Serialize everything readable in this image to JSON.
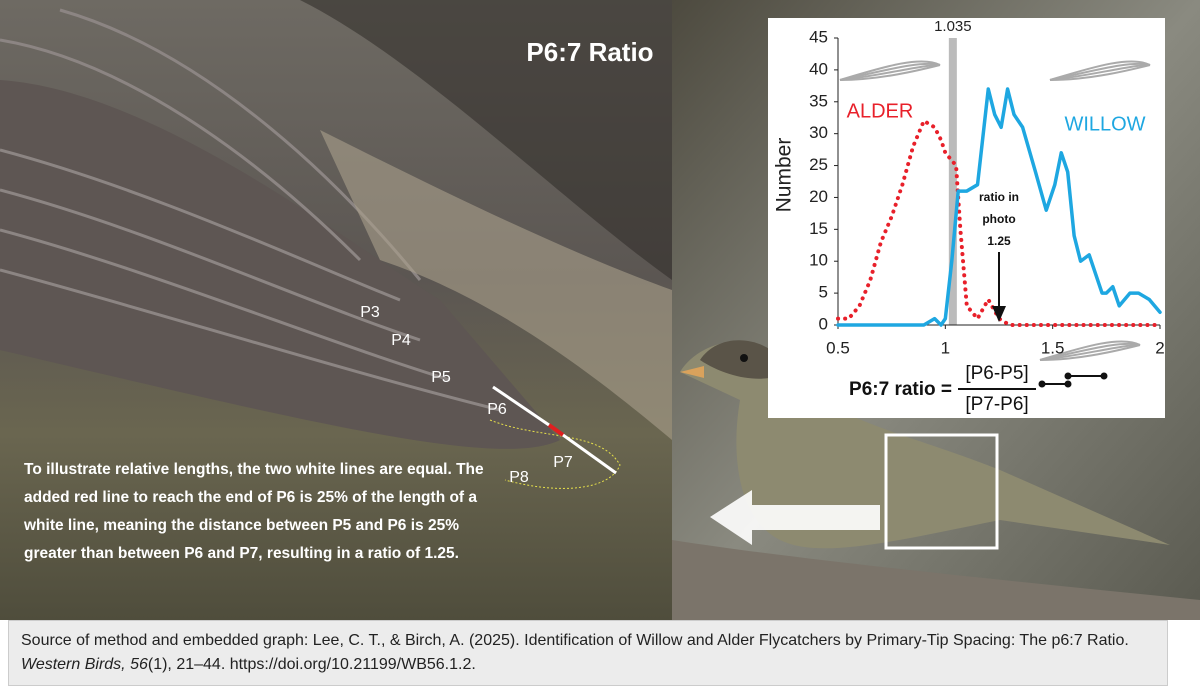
{
  "title": "P6:7 Ratio",
  "feather_labels": [
    "P3",
    "P4",
    "P5",
    "P6",
    "P7",
    "P8"
  ],
  "explanation": "To illustrate relative lengths, the two white lines are equal. The added red line to reach the end of P6 is 25% of the length of a white line, meaning the distance between P5 and P6 is 25% greater than between P6 and P7, resulting in a ratio of 1.25.",
  "caption": {
    "text_before": "Source of method and embedded graph: Lee, C. T., & Birch, A. (2025). Identification of Willow and Alder Flycatchers by Primary-Tip Spacing: The p6:7 Ratio. ",
    "journal": "Western Birds, 56",
    "text_after": "(1), 21–44. https://doi.org/10.21199/WB56.1.2."
  },
  "chart_data": {
    "type": "line",
    "y_label": "Number",
    "xlim": [
      0.5,
      2
    ],
    "xticks": [
      0.5,
      1,
      1.5,
      2
    ],
    "ylim": [
      0,
      45
    ],
    "yticks": [
      0,
      5,
      10,
      15,
      20,
      25,
      30,
      35,
      40,
      45
    ],
    "threshold": {
      "value": 1.035,
      "color": "#bbbbbb"
    },
    "photo_marker": {
      "value": 1.25,
      "text": [
        "ratio in",
        "photo"
      ]
    },
    "formula": {
      "left": "P6:7 ratio =",
      "numerator": "[P6-P5]",
      "denominator": "[P7-P6]"
    },
    "series": [
      {
        "name": "ALDER",
        "color": "#e8202a",
        "style": "dotted",
        "x": [
          0.5,
          0.55,
          0.6,
          0.65,
          0.7,
          0.75,
          0.8,
          0.85,
          0.9,
          0.95,
          0.98,
          1.0,
          1.05,
          1.07,
          1.1,
          1.15,
          1.2,
          1.25,
          1.3,
          2.0
        ],
        "values": [
          1,
          1,
          3,
          7,
          13,
          17,
          22,
          28,
          32,
          31,
          29,
          27,
          25,
          15,
          3,
          1,
          4,
          1,
          0,
          0
        ]
      },
      {
        "name": "WILLOW",
        "color": "#1ea7e1",
        "style": "solid",
        "x": [
          0.5,
          0.9,
          0.95,
          0.98,
          1.0,
          1.03,
          1.06,
          1.1,
          1.15,
          1.2,
          1.23,
          1.26,
          1.29,
          1.32,
          1.36,
          1.42,
          1.47,
          1.51,
          1.54,
          1.57,
          1.6,
          1.63,
          1.67,
          1.7,
          1.73,
          1.75,
          1.78,
          1.81,
          1.86,
          1.9,
          1.95,
          2.0
        ],
        "values": [
          0,
          0,
          1,
          0,
          1,
          10,
          21,
          21,
          22,
          37,
          33,
          31,
          37,
          33,
          31,
          24,
          18,
          22,
          27,
          24,
          14,
          10,
          11,
          8,
          5,
          5,
          6,
          3,
          5,
          5,
          4,
          2
        ]
      }
    ]
  }
}
